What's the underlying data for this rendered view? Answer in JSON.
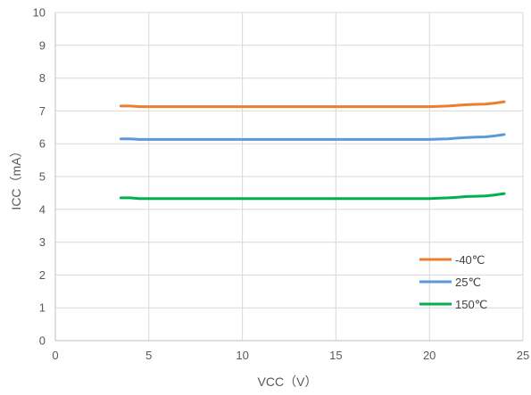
{
  "chart_data": {
    "type": "line",
    "xlabel": "VCC（V）",
    "ylabel": "ICC（mA）",
    "xlim": [
      0,
      25
    ],
    "ylim": [
      0,
      10
    ],
    "xticks": [
      "0",
      "5",
      "10",
      "15",
      "20",
      "25"
    ],
    "yticks": [
      "0",
      "1",
      "2",
      "3",
      "4",
      "5",
      "6",
      "7",
      "8",
      "9",
      "10"
    ],
    "grid": true,
    "legend_position": "bottom-right",
    "x": [
      3.5,
      4,
      4.5,
      5,
      6,
      8,
      10,
      12,
      14,
      16,
      18,
      19,
      20,
      20.5,
      21,
      21.5,
      22,
      22.5,
      23,
      23.5,
      24
    ],
    "series": [
      {
        "name": "-40℃",
        "color": "#ED7D31",
        "values": [
          7.15,
          7.15,
          7.13,
          7.13,
          7.13,
          7.13,
          7.13,
          7.13,
          7.13,
          7.13,
          7.13,
          7.13,
          7.13,
          7.14,
          7.15,
          7.17,
          7.19,
          7.2,
          7.21,
          7.24,
          7.28
        ]
      },
      {
        "name": "25℃",
        "color": "#5B9BD5",
        "values": [
          6.15,
          6.15,
          6.13,
          6.13,
          6.13,
          6.13,
          6.13,
          6.13,
          6.13,
          6.13,
          6.13,
          6.13,
          6.13,
          6.14,
          6.15,
          6.17,
          6.19,
          6.2,
          6.21,
          6.24,
          6.28
        ]
      },
      {
        "name": "150℃",
        "color": "#00B050",
        "values": [
          4.35,
          4.35,
          4.33,
          4.33,
          4.33,
          4.33,
          4.33,
          4.33,
          4.33,
          4.33,
          4.33,
          4.33,
          4.33,
          4.34,
          4.35,
          4.37,
          4.39,
          4.4,
          4.41,
          4.44,
          4.48
        ]
      }
    ]
  }
}
